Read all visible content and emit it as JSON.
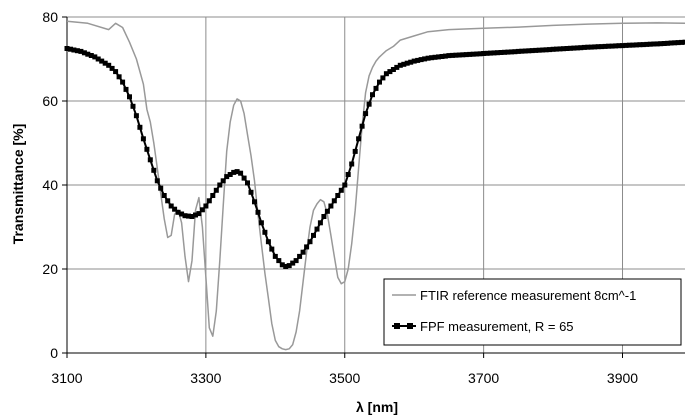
{
  "chart_data": {
    "type": "line",
    "title": "",
    "xlabel": "λ [nm]",
    "ylabel": "Transmittance [%]",
    "xlim": [
      3100,
      3990
    ],
    "ylim": [
      0,
      80
    ],
    "x_ticks": [
      3100,
      3300,
      3500,
      3700,
      3900
    ],
    "y_ticks": [
      0,
      20,
      40,
      60,
      80
    ],
    "grid": true,
    "legend_position": "bottom-right",
    "series": [
      {
        "name": "FTIR reference measurement  8cm^-1",
        "color": "#999999",
        "marker": "none",
        "x": [
          3100,
          3130,
          3160,
          3170,
          3180,
          3190,
          3200,
          3210,
          3215,
          3220,
          3225,
          3230,
          3235,
          3240,
          3245,
          3250,
          3255,
          3260,
          3265,
          3270,
          3275,
          3280,
          3285,
          3290,
          3295,
          3300,
          3305,
          3310,
          3315,
          3320,
          3325,
          3330,
          3335,
          3340,
          3345,
          3350,
          3355,
          3360,
          3365,
          3370,
          3375,
          3380,
          3385,
          3390,
          3395,
          3400,
          3405,
          3410,
          3415,
          3420,
          3425,
          3430,
          3435,
          3440,
          3445,
          3450,
          3455,
          3460,
          3465,
          3470,
          3475,
          3480,
          3485,
          3490,
          3495,
          3500,
          3505,
          3510,
          3515,
          3520,
          3525,
          3530,
          3535,
          3540,
          3545,
          3550,
          3560,
          3570,
          3580,
          3600,
          3620,
          3650,
          3700,
          3750,
          3800,
          3850,
          3900,
          3950,
          3990
        ],
        "values": [
          79,
          78.5,
          77,
          78.5,
          77.5,
          74,
          70,
          64,
          58,
          55,
          50,
          44,
          38,
          32,
          27.5,
          28,
          33,
          34,
          31,
          23,
          17,
          22,
          34,
          37,
          30,
          18,
          6,
          4,
          10,
          22,
          35,
          48,
          55,
          59,
          60.5,
          60,
          57,
          52,
          47,
          41,
          33,
          26,
          19,
          13,
          7,
          3,
          1.5,
          1,
          0.8,
          1,
          2,
          5,
          10,
          17,
          24,
          30,
          34,
          35.5,
          36.5,
          36,
          33,
          28,
          23,
          18,
          16.5,
          17,
          20,
          26,
          34,
          44,
          54,
          62,
          66,
          68,
          69.5,
          70.5,
          72,
          73,
          74.5,
          75.5,
          76.5,
          77,
          77.3,
          77.6,
          78,
          78.3,
          78.5,
          78.6,
          78.5
        ]
      },
      {
        "name": "FPF measurement, R = 65",
        "color": "#000000",
        "marker": "square",
        "x": [
          3100,
          3120,
          3140,
          3160,
          3170,
          3180,
          3190,
          3200,
          3210,
          3220,
          3230,
          3240,
          3250,
          3260,
          3270,
          3280,
          3290,
          3300,
          3310,
          3320,
          3330,
          3340,
          3345,
          3350,
          3360,
          3370,
          3380,
          3390,
          3400,
          3410,
          3415,
          3420,
          3430,
          3440,
          3450,
          3460,
          3470,
          3480,
          3490,
          3500,
          3510,
          3520,
          3530,
          3540,
          3550,
          3560,
          3570,
          3580,
          3600,
          3620,
          3650,
          3700,
          3750,
          3800,
          3850,
          3900,
          3950,
          3990
        ],
        "values": [
          72.5,
          71.8,
          70.5,
          68.5,
          67,
          64.5,
          61,
          56.5,
          51,
          46,
          41,
          37.5,
          35,
          33.5,
          32.7,
          32.5,
          33.2,
          35,
          37.5,
          40,
          42,
          43,
          43.2,
          42.8,
          40.5,
          36,
          31,
          26.5,
          23,
          21,
          20.6,
          20.8,
          22,
          24,
          26.5,
          29.5,
          32.5,
          35,
          37.5,
          40,
          45,
          51,
          57,
          61.5,
          64.5,
          66.5,
          67.5,
          68.5,
          69.5,
          70.2,
          70.8,
          71.3,
          71.8,
          72.3,
          72.8,
          73.2,
          73.6,
          74
        ]
      }
    ]
  }
}
